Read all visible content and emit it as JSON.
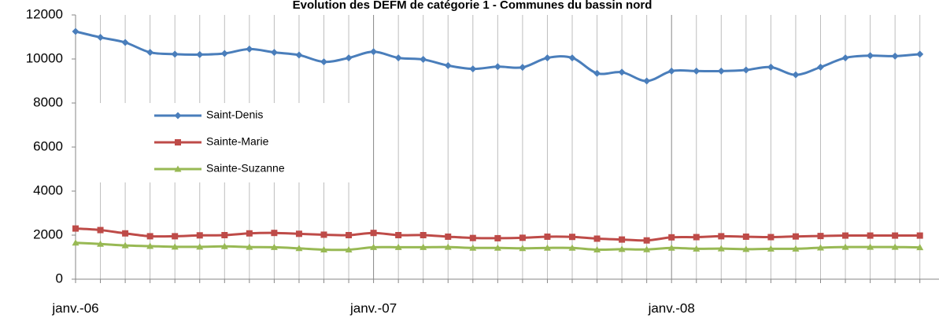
{
  "chart_data": {
    "type": "line",
    "title": "Evolution des DEFM de catégorie 1 - Communes du bassin nord",
    "categories": [
      "janv.-06",
      null,
      null,
      null,
      null,
      null,
      null,
      null,
      null,
      null,
      null,
      null,
      "janv.-07",
      null,
      null,
      null,
      null,
      null,
      null,
      null,
      null,
      null,
      null,
      null,
      "janv.-08",
      null,
      null,
      null,
      null,
      null,
      null,
      null,
      null,
      null,
      null
    ],
    "series": [
      {
        "name": "Saint-Denis",
        "color": "#4a7ebb",
        "marker": "diamond",
        "values": [
          11250,
          10980,
          10750,
          10300,
          10220,
          10200,
          10250,
          10450,
          10300,
          10180,
          9870,
          10050,
          10330,
          10050,
          9980,
          9700,
          9550,
          9650,
          9620,
          10050,
          10050,
          9350,
          9400,
          9000,
          9450,
          9450,
          9450,
          9500,
          9630,
          9280,
          9630,
          10050,
          10150,
          10130,
          10220
        ]
      },
      {
        "name": "Sainte-Marie",
        "color": "#be4b48",
        "marker": "square",
        "values": [
          2300,
          2230,
          2080,
          1950,
          1950,
          1990,
          2000,
          2080,
          2100,
          2060,
          2020,
          2000,
          2100,
          2000,
          2000,
          1930,
          1870,
          1860,
          1880,
          1930,
          1920,
          1840,
          1800,
          1760,
          1900,
          1910,
          1950,
          1930,
          1910,
          1940,
          1960,
          1980,
          1980,
          1980,
          1980
        ]
      },
      {
        "name": "Sainte-Suzanne",
        "color": "#98b954",
        "marker": "triangle",
        "values": [
          1650,
          1600,
          1530,
          1500,
          1470,
          1470,
          1490,
          1460,
          1450,
          1400,
          1340,
          1340,
          1450,
          1450,
          1450,
          1460,
          1420,
          1420,
          1400,
          1420,
          1420,
          1340,
          1360,
          1350,
          1420,
          1380,
          1390,
          1360,
          1380,
          1380,
          1430,
          1460,
          1460,
          1460,
          1440
        ]
      }
    ],
    "ylim": [
      0,
      12000
    ],
    "yticks": [
      0,
      2000,
      4000,
      6000,
      8000,
      10000,
      12000
    ],
    "grid": "x",
    "legend": "left"
  }
}
